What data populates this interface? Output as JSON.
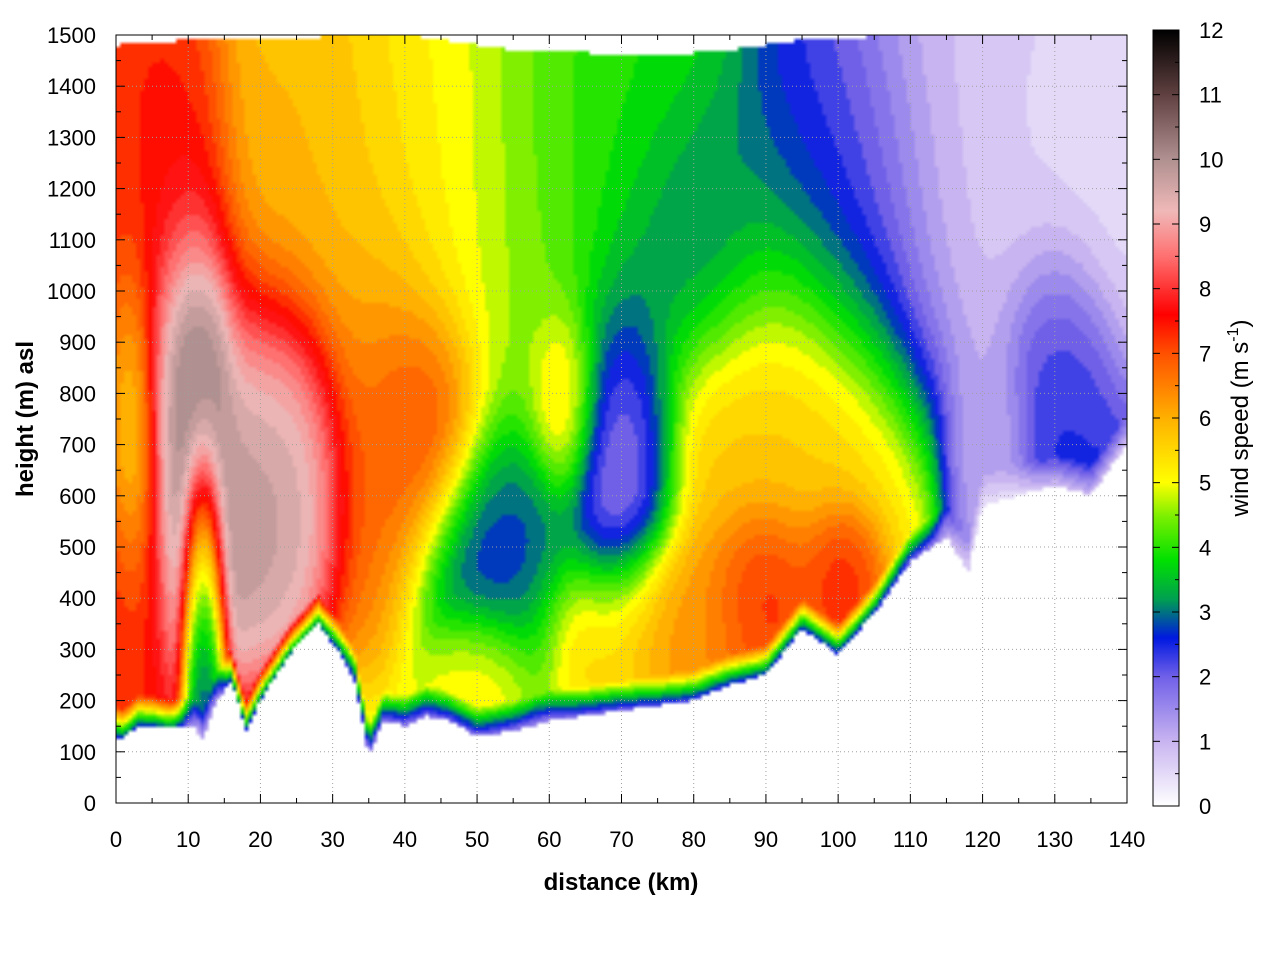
{
  "chart_data": {
    "type": "heatmap",
    "title": "",
    "xlabel": "distance (km)",
    "ylabel": "height (m) asl",
    "colorbar_label": "wind speed (m s",
    "colorbar_label_sup": "-1",
    "colorbar_label_close": ")",
    "xlim": [
      0,
      140
    ],
    "ylim": [
      0,
      1500
    ],
    "zlim": [
      0,
      12
    ],
    "x_ticks": [
      0,
      10,
      20,
      30,
      40,
      50,
      60,
      70,
      80,
      90,
      100,
      110,
      120,
      130,
      140
    ],
    "y_ticks": [
      0,
      100,
      200,
      300,
      400,
      500,
      600,
      700,
      800,
      900,
      1000,
      1100,
      1200,
      1300,
      1400,
      1500
    ],
    "z_ticks": [
      0,
      1,
      2,
      3,
      4,
      5,
      6,
      7,
      8,
      9,
      10,
      11,
      12
    ],
    "grid": true,
    "colormap": [
      {
        "v": 0,
        "c": "#ffffff"
      },
      {
        "v": 1,
        "c": "#c8b4f0"
      },
      {
        "v": 2,
        "c": "#7060e8"
      },
      {
        "v": 2.6,
        "c": "#0018e0"
      },
      {
        "v": 3.2,
        "c": "#00a050"
      },
      {
        "v": 3.8,
        "c": "#00e000"
      },
      {
        "v": 4.5,
        "c": "#80f000"
      },
      {
        "v": 5,
        "c": "#ffff00"
      },
      {
        "v": 6,
        "c": "#ffb000"
      },
      {
        "v": 7,
        "c": "#ff5000"
      },
      {
        "v": 7.6,
        "c": "#ff0000"
      },
      {
        "v": 8.5,
        "c": "#ff7070"
      },
      {
        "v": 9.2,
        "c": "#f0b8b8"
      },
      {
        "v": 10,
        "c": "#b09090"
      },
      {
        "v": 11,
        "c": "#604040"
      },
      {
        "v": 12,
        "c": "#000000"
      }
    ],
    "terrain": [
      [
        0,
        130
      ],
      [
        1,
        125
      ],
      [
        3,
        150
      ],
      [
        5,
        150
      ],
      [
        7,
        145
      ],
      [
        9,
        145
      ],
      [
        11,
        145
      ],
      [
        12,
        120
      ],
      [
        14,
        200
      ],
      [
        16,
        240
      ],
      [
        18,
        140
      ],
      [
        20,
        200
      ],
      [
        24,
        290
      ],
      [
        28,
        350
      ],
      [
        31,
        290
      ],
      [
        33,
        240
      ],
      [
        35,
        90
      ],
      [
        37,
        160
      ],
      [
        40,
        150
      ],
      [
        43,
        170
      ],
      [
        46,
        160
      ],
      [
        50,
        130
      ],
      [
        55,
        140
      ],
      [
        60,
        160
      ],
      [
        65,
        170
      ],
      [
        70,
        180
      ],
      [
        75,
        190
      ],
      [
        80,
        200
      ],
      [
        85,
        230
      ],
      [
        90,
        250
      ],
      [
        95,
        340
      ],
      [
        100,
        290
      ],
      [
        105,
        370
      ],
      [
        110,
        470
      ],
      [
        115,
        520
      ],
      [
        118,
        450
      ],
      [
        120,
        580
      ],
      [
        125,
        600
      ],
      [
        130,
        620
      ],
      [
        135,
        600
      ],
      [
        140,
        700
      ]
    ],
    "top_envelope": [
      [
        0,
        1480
      ],
      [
        10,
        1490
      ],
      [
        40,
        1500
      ],
      [
        55,
        1470
      ],
      [
        75,
        1460
      ],
      [
        85,
        1470
      ],
      [
        95,
        1490
      ],
      [
        110,
        1500
      ],
      [
        140,
        1500
      ]
    ],
    "fields": [
      {
        "x": 0,
        "y": 800,
        "v": 7.3,
        "sx": 4,
        "sy": 600
      },
      {
        "x": 1,
        "y": 400,
        "v": 7.8,
        "sx": 3,
        "sy": 150
      },
      {
        "x": 2,
        "y": 700,
        "v": 4.0,
        "sx": 2,
        "sy": 200
      },
      {
        "x": 5,
        "y": 1300,
        "v": 7.5,
        "sx": 5,
        "sy": 200
      },
      {
        "x": 10,
        "y": 750,
        "v": 10.5,
        "sx": 4,
        "sy": 250
      },
      {
        "x": 12,
        "y": 800,
        "v": 11.5,
        "sx": 2,
        "sy": 120
      },
      {
        "x": 12,
        "y": 400,
        "v": 2.0,
        "sx": 1.5,
        "sy": 220
      },
      {
        "x": 20,
        "y": 680,
        "v": 10.3,
        "sx": 5,
        "sy": 180
      },
      {
        "x": 25,
        "y": 700,
        "v": 10.0,
        "sx": 4,
        "sy": 150
      },
      {
        "x": 30,
        "y": 1100,
        "v": 6.0,
        "sx": 10,
        "sy": 300
      },
      {
        "x": 38,
        "y": 750,
        "v": 7.2,
        "sx": 5,
        "sy": 200
      },
      {
        "x": 43,
        "y": 760,
        "v": 7.8,
        "sx": 4,
        "sy": 120
      },
      {
        "x": 45,
        "y": 1200,
        "v": 5.0,
        "sx": 8,
        "sy": 300
      },
      {
        "x": 52,
        "y": 500,
        "v": 2.4,
        "sx": 6,
        "sy": 150
      },
      {
        "x": 50,
        "y": 250,
        "v": 5.5,
        "sx": 4,
        "sy": 80
      },
      {
        "x": 60,
        "y": 1150,
        "v": 4.4,
        "sx": 8,
        "sy": 300
      },
      {
        "x": 62,
        "y": 800,
        "v": 6.0,
        "sx": 2.5,
        "sy": 100
      },
      {
        "x": 70,
        "y": 700,
        "v": 1.2,
        "sx": 4,
        "sy": 200
      },
      {
        "x": 70,
        "y": 1300,
        "v": 3.8,
        "sx": 8,
        "sy": 200
      },
      {
        "x": 80,
        "y": 1100,
        "v": 2.6,
        "sx": 7,
        "sy": 150
      },
      {
        "x": 78,
        "y": 350,
        "v": 6.4,
        "sx": 10,
        "sy": 100
      },
      {
        "x": 90,
        "y": 400,
        "v": 8.0,
        "sx": 4,
        "sy": 100
      },
      {
        "x": 100,
        "y": 440,
        "v": 7.8,
        "sx": 3,
        "sy": 80
      },
      {
        "x": 92,
        "y": 750,
        "v": 5.8,
        "sx": 10,
        "sy": 250
      },
      {
        "x": 100,
        "y": 1200,
        "v": 2.4,
        "sx": 8,
        "sy": 200
      },
      {
        "x": 118,
        "y": 1250,
        "v": 0.7,
        "sx": 10,
        "sy": 250
      },
      {
        "x": 121,
        "y": 700,
        "v": 1.0,
        "sx": 3,
        "sy": 150
      },
      {
        "x": 130,
        "y": 850,
        "v": 2.5,
        "sx": 4,
        "sy": 150
      },
      {
        "x": 135,
        "y": 1300,
        "v": 0.4,
        "sx": 8,
        "sy": 200
      }
    ],
    "background_value": 3.5
  }
}
